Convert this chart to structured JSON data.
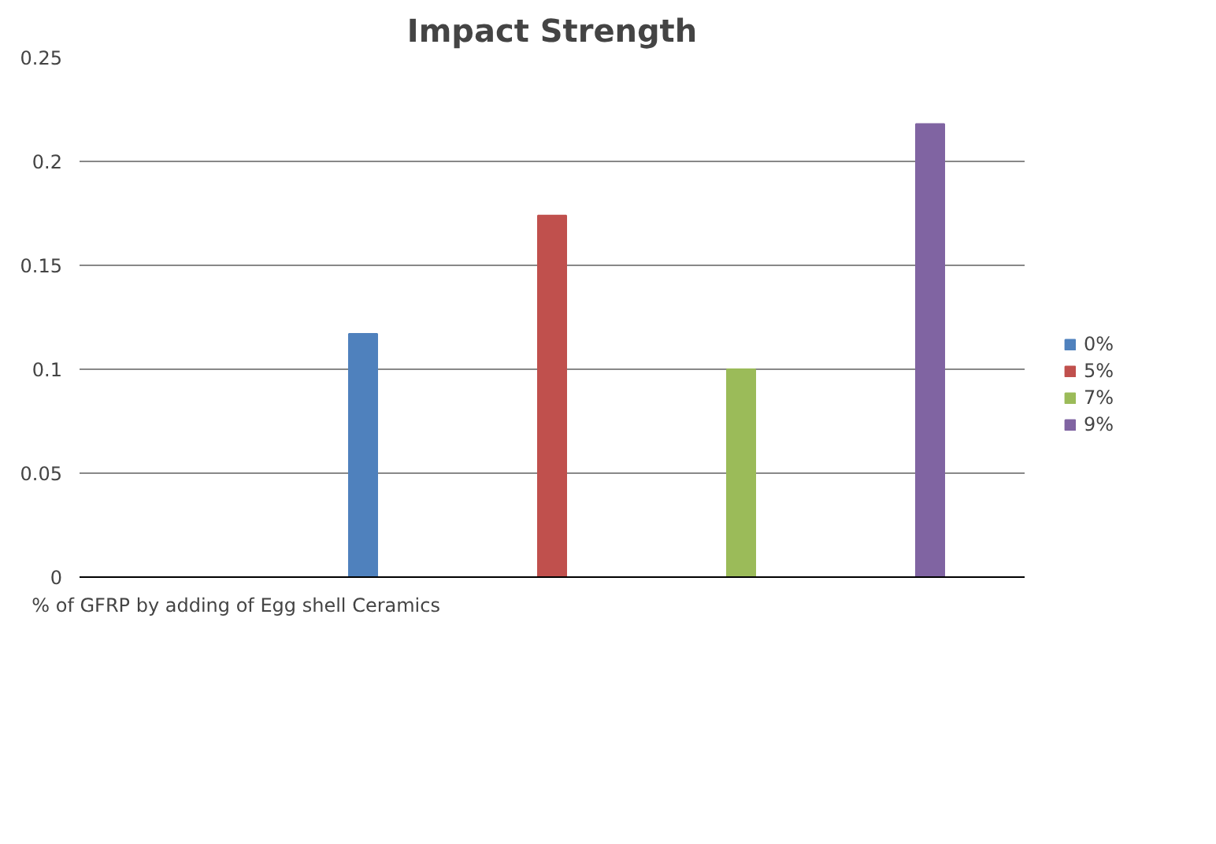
{
  "chart_data": {
    "type": "bar",
    "title": "Impact Strength",
    "categories": [
      "% of GFRP by adding of Egg shell Ceramics",
      null,
      null,
      null,
      null
    ],
    "series": [
      {
        "name": "0%",
        "color": "#4f81bd",
        "values": [
          null,
          0.117,
          null,
          null,
          null
        ]
      },
      {
        "name": "5%",
        "color": "#c0504d",
        "values": [
          null,
          null,
          0.174,
          null,
          null
        ]
      },
      {
        "name": "7%",
        "color": "#9bbb59",
        "values": [
          null,
          null,
          null,
          0.1,
          null
        ]
      },
      {
        "name": "9%",
        "color": "#8064a2",
        "values": [
          null,
          null,
          null,
          null,
          0.218
        ]
      }
    ],
    "ylim": [
      0,
      0.25
    ],
    "yticks": [
      0,
      0.05,
      0.1,
      0.15,
      0.2,
      0.25
    ],
    "grid": "y",
    "legend": "right"
  }
}
